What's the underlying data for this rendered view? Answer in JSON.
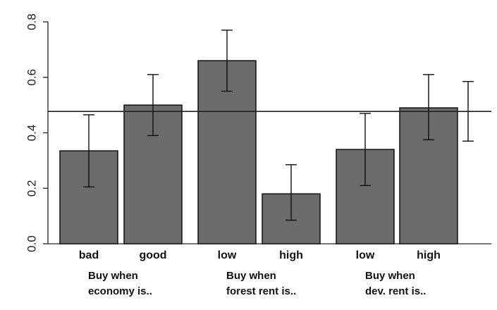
{
  "chart_data": {
    "type": "bar",
    "categories": [
      "bad",
      "good",
      "low",
      "high",
      "low",
      "high"
    ],
    "groups": [
      {
        "line1": "Buy when",
        "line2": "economy is.."
      },
      {
        "line1": "Buy when",
        "line2": "forest rent is.."
      },
      {
        "line1": "Buy when",
        "line2": "dev. rent is.."
      }
    ],
    "values": [
      0.335,
      0.5,
      0.66,
      0.18,
      0.34,
      0.49
    ],
    "error_low": [
      0.205,
      0.39,
      0.55,
      0.085,
      0.21,
      0.375
    ],
    "error_high": [
      0.465,
      0.61,
      0.77,
      0.285,
      0.47,
      0.61
    ],
    "reference_line": 0.477,
    "reference_error": {
      "low": 0.37,
      "high": 0.585
    },
    "ylim": [
      0,
      0.8
    ],
    "yticks": [
      "0.0",
      "0.2",
      "0.4",
      "0.6",
      "0.8"
    ],
    "title": "",
    "xlabel": "",
    "ylabel": "",
    "colors": {
      "bar": "#6b6b6b",
      "edge": "#111111",
      "line": "#222222"
    }
  }
}
